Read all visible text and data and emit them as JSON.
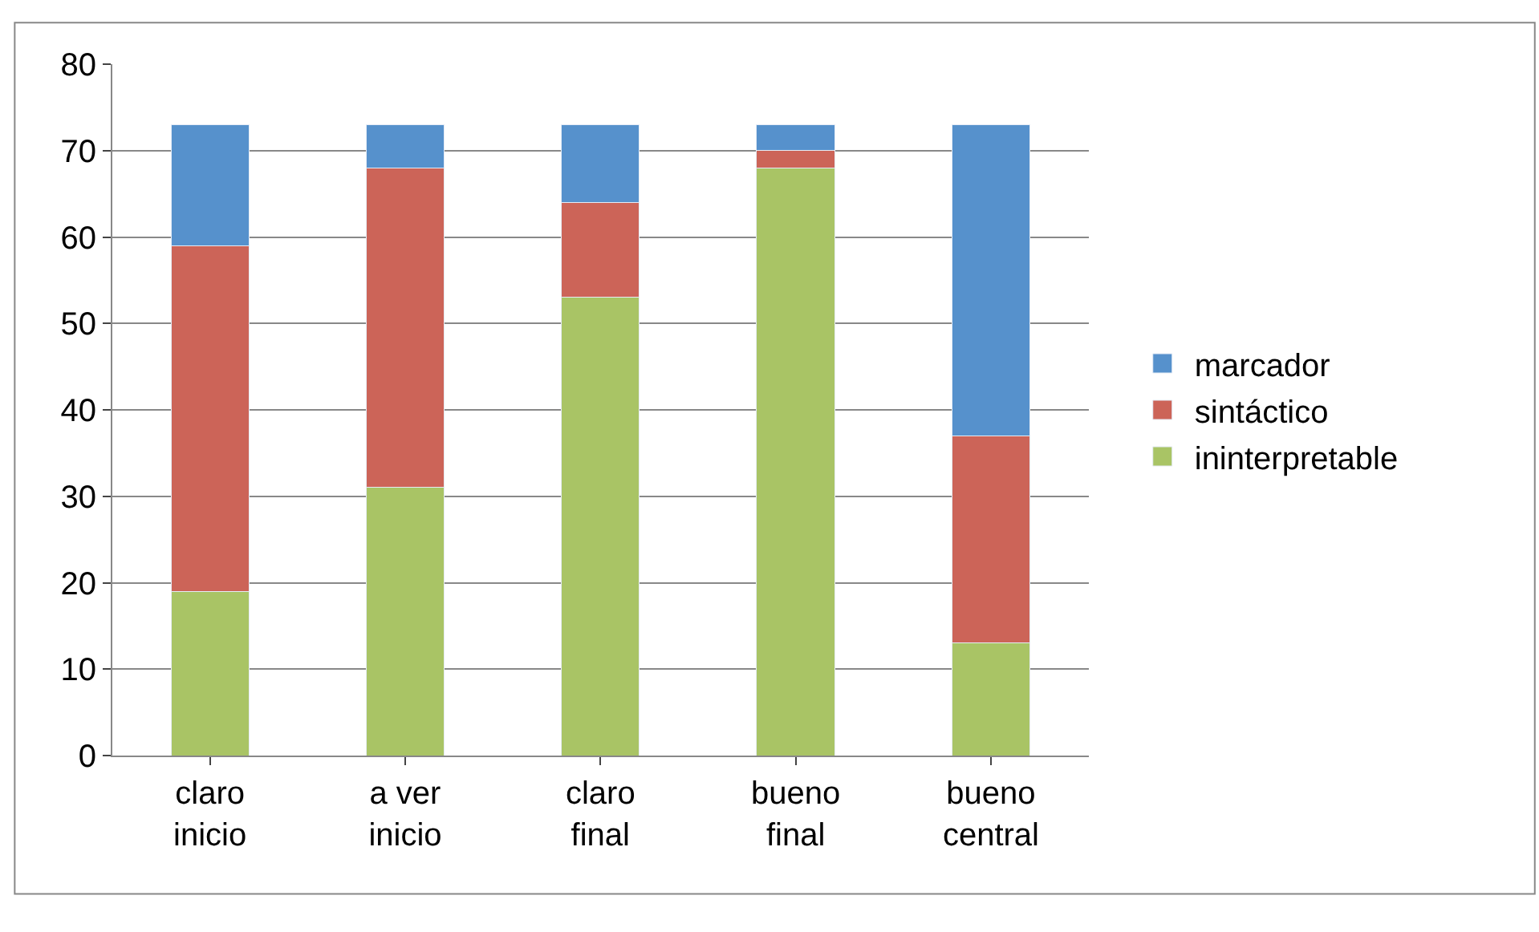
{
  "chart_data": {
    "type": "bar",
    "stacked": true,
    "categories": [
      "claro\ninicio",
      "a ver\ninicio",
      "claro\nfinal",
      "bueno\nfinal",
      "bueno\ncentral"
    ],
    "series": [
      {
        "name": "ininterpretable",
        "color": "#a9c465",
        "values": [
          19,
          31,
          53,
          68,
          13
        ]
      },
      {
        "name": "sintáctico",
        "color": "#cc6458",
        "values": [
          40,
          37,
          11,
          2,
          24
        ]
      },
      {
        "name": "marcador",
        "color": "#5691cc",
        "values": [
          14,
          5,
          9,
          3,
          36
        ]
      }
    ],
    "ylim": [
      0,
      80
    ],
    "yticks": [
      0,
      10,
      20,
      30,
      40,
      50,
      60,
      70,
      80
    ],
    "grid": "y",
    "legend": "right"
  }
}
